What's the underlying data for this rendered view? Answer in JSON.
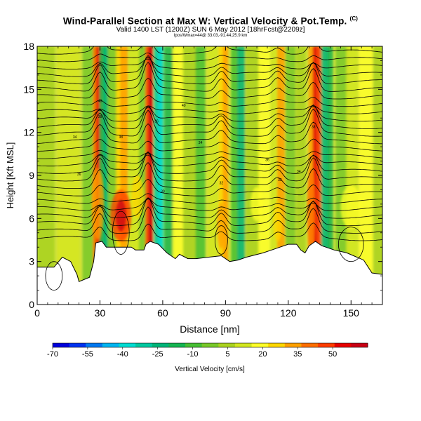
{
  "title": "Wind-Parallel Section at Max W: Vertical Velocity & Pot.Temp.",
  "title_mark": "(C)",
  "subtitle": "Valid 1400 LST (1200Z) SUN 6 May 2012 [18hrFcst@2209z]",
  "subsubtitle": "Ipos/Wmax=44@ 33.03,-91.44,25.9 km",
  "chart_data": {
    "type": "heatmap",
    "xlabel": "Distance [nm]",
    "ylabel": "Height [Kft MSL]",
    "xlim": [
      0,
      165
    ],
    "ylim": [
      0,
      18
    ],
    "xticks": [
      "0",
      "30",
      "60",
      "90",
      "120",
      "150"
    ],
    "xtick_values": [
      0,
      30,
      60,
      90,
      120,
      150
    ],
    "yticks": [
      "0",
      "3",
      "6",
      "9",
      "12",
      "15",
      "18"
    ],
    "ytick_values": [
      0,
      3,
      6,
      9,
      12,
      15,
      18
    ],
    "colorbar": {
      "label": "Vertical Velocity [cm/s]",
      "tick_labels": [
        "-70",
        "-55",
        "-40",
        "-25",
        "-10",
        "5",
        "20",
        "35",
        "50"
      ],
      "range": [
        -70,
        65
      ],
      "colors": [
        "#0000dc",
        "#0032f0",
        "#0078f0",
        "#00b4f0",
        "#00dcd2",
        "#00c8a0",
        "#00b478",
        "#14b450",
        "#46be32",
        "#78c828",
        "#aad21e",
        "#d2e61e",
        "#ffff28",
        "#ffd700",
        "#ffa000",
        "#ff6e00",
        "#ff3c00",
        "#e60000",
        "#c80014"
      ]
    },
    "contour_labels": [
      "40",
      "38",
      "36",
      "34",
      "32",
      "30"
    ],
    "features": {
      "updrafts_nm": [
        28,
        40,
        53,
        88,
        115,
        132
      ],
      "downdrafts_nm": [
        31,
        58,
        96,
        137
      ]
    }
  }
}
